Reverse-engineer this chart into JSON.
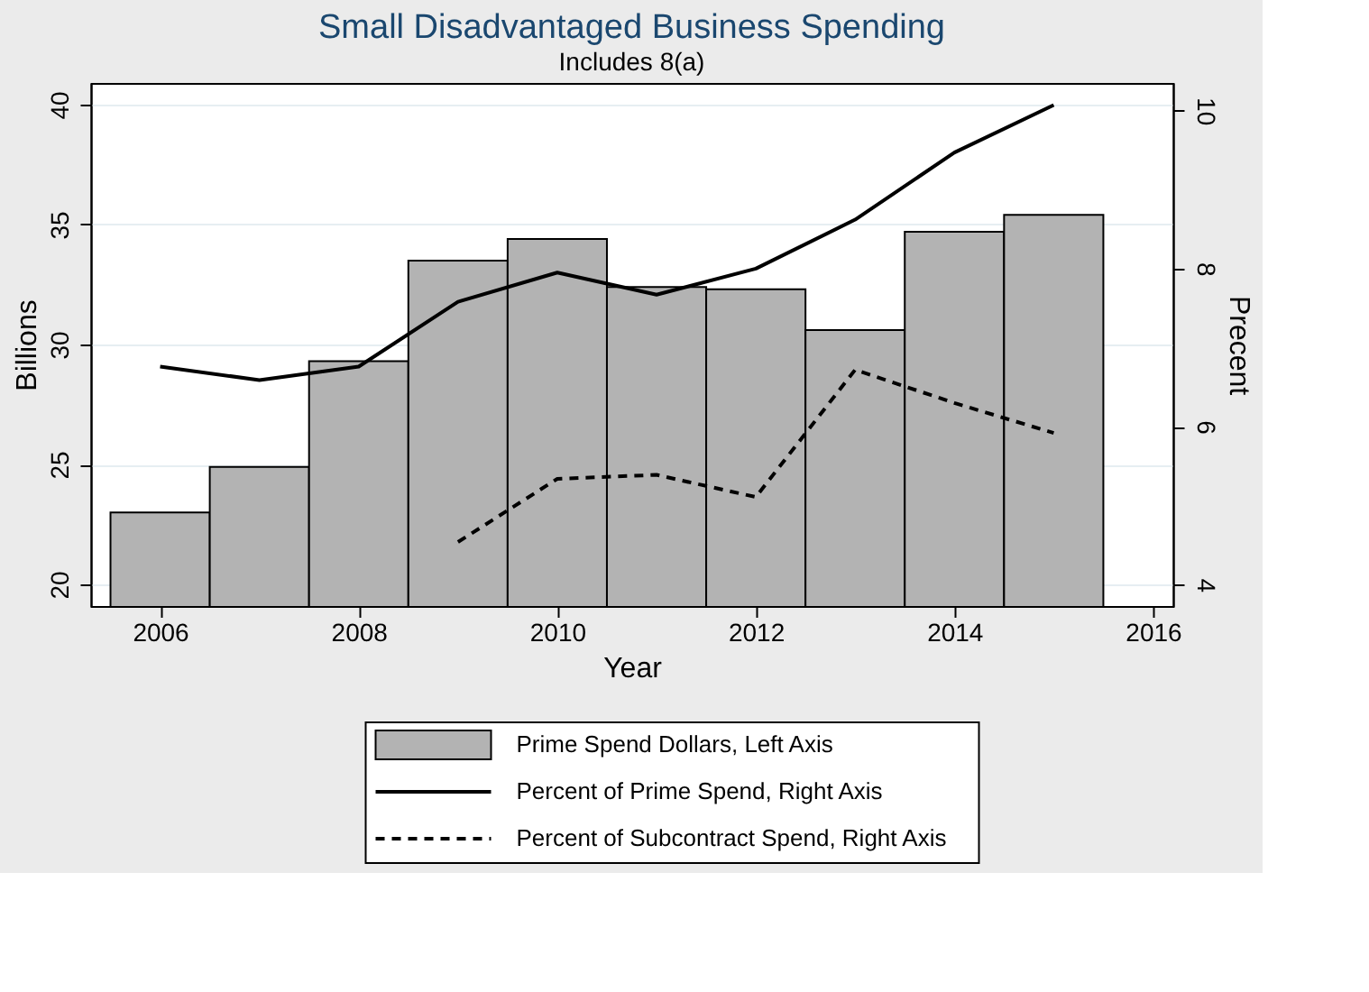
{
  "chart_data": {
    "type": "bar",
    "title": "Small Disadvantaged Business Spending",
    "subtitle": "Includes 8(a)",
    "xlabel": "Year",
    "ylabel": "Billions",
    "y2label": "Precent",
    "x": [
      2006,
      2007,
      2008,
      2009,
      2010,
      2011,
      2012,
      2013,
      2014,
      2015
    ],
    "xlim": [
      2005.3,
      2016.2
    ],
    "xticks": [
      2006,
      2008,
      2010,
      2012,
      2014,
      2016
    ],
    "ylim": [
      19.1,
      40.9
    ],
    "yticks": [
      20,
      25,
      30,
      35,
      40
    ],
    "y2lim": [
      3.73,
      10.35
    ],
    "y2ticks": [
      4,
      6,
      8,
      10
    ],
    "grid": "y",
    "legend": "bottom",
    "series": [
      {
        "name": "Prime Spend Dollars, Left Axis",
        "color": "#b3b3b3",
        "values": [
          23.0,
          24.9,
          29.3,
          33.5,
          34.4,
          32.4,
          32.3,
          30.6,
          34.7,
          35.4
        ]
      },
      {
        "name": "Percent of Prime Spend, Right Axis",
        "type": "line",
        "axis": "y2",
        "color": "#000000",
        "line_style": "solid",
        "values": [
          6.76,
          6.59,
          6.76,
          7.58,
          7.95,
          7.67,
          8.0,
          8.62,
          9.47,
          10.07
        ]
      },
      {
        "name": "Percent of Subcontract Spend, Right Axis",
        "type": "line",
        "axis": "y2",
        "color": "#000000",
        "line_style": "dashed",
        "x": [
          2009,
          2010,
          2011,
          2012,
          2013,
          2014,
          2015
        ],
        "values": [
          4.54,
          5.34,
          5.39,
          5.11,
          6.72,
          6.3,
          5.92
        ]
      }
    ]
  }
}
